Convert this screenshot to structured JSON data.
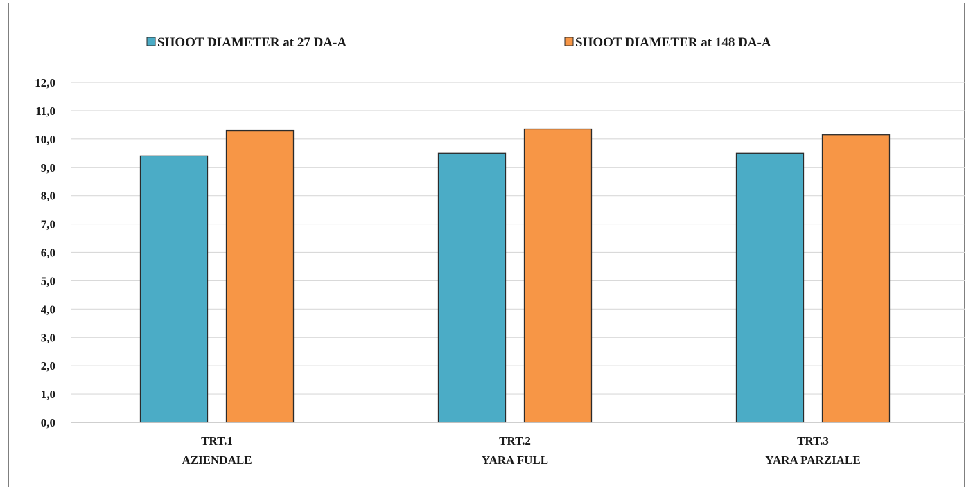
{
  "chart_data": {
    "type": "bar",
    "title": "",
    "xlabel": "",
    "ylabel": "",
    "categories": [
      [
        "TRT.1",
        "AZIENDALE"
      ],
      [
        "TRT.2",
        "YARA FULL"
      ],
      [
        "TRT.3",
        "YARA PARZIALE"
      ]
    ],
    "series": [
      {
        "name": "SHOOT DIAMETER at 27 DA-A",
        "color": "#4bacc6",
        "values": [
          9.4,
          9.5,
          9.5
        ]
      },
      {
        "name": "SHOOT DIAMETER at 148 DA-A",
        "color": "#f79646",
        "values": [
          10.3,
          10.35,
          10.15
        ]
      }
    ],
    "ylim": [
      0,
      12
    ],
    "ytick_step": 1,
    "ytick_labels": [
      "0,0",
      "1,0",
      "2,0",
      "3,0",
      "4,0",
      "5,0",
      "6,0",
      "7,0",
      "8,0",
      "9,0",
      "10,0",
      "11,0",
      "12,0"
    ],
    "grid": true,
    "legend_position": "top"
  }
}
